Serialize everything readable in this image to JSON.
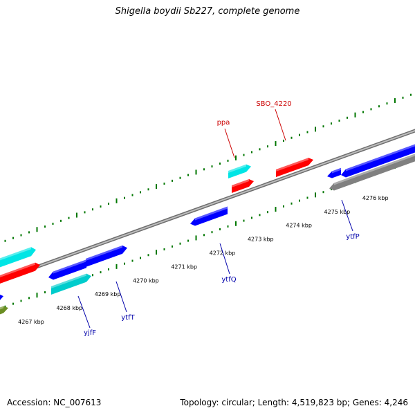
{
  "title": "Shigella boydii Sb227, complete genome",
  "footer": {
    "accession": "Accession: NC_007613",
    "stats": "Topology: circular; Length: 4,519,823 bp; Genes: 4,246"
  },
  "colors": {
    "plus_cds": "#ff0000",
    "minus_cds": "#0000ff",
    "plus_rna": "#00e5e5",
    "minus_rna": "#00cccc",
    "pseudo": "#808080",
    "other": "#6b8e23",
    "tick": "#007700",
    "backbone": "#888888",
    "label_plus": "#cc0000",
    "label_minus": "#0000aa"
  },
  "kbp_ticks": [
    "4267 kbp",
    "4268 kbp",
    "4269 kbp",
    "4270 kbp",
    "4271 kbp",
    "4272 kbp",
    "4273 kbp",
    "4274 kbp",
    "4275 kbp",
    "4276 kbp"
  ],
  "gene_labels": [
    {
      "name": "ppa",
      "strand": "plus"
    },
    {
      "name": "SBO_4220",
      "strand": "plus"
    },
    {
      "name": "yjfF",
      "strand": "minus"
    },
    {
      "name": "ytfT",
      "strand": "minus"
    },
    {
      "name": "ytfQ",
      "strand": "minus"
    },
    {
      "name": "ytfP",
      "strand": "minus"
    }
  ],
  "features": [
    {
      "id": "f-plus-rna-1",
      "kind": "plus_rna"
    },
    {
      "id": "f-plus-cds-1",
      "kind": "plus_cds"
    },
    {
      "id": "f-ppa-rna",
      "kind": "plus_rna"
    },
    {
      "id": "f-ppa-cds",
      "kind": "plus_cds"
    },
    {
      "id": "f-sbo4220",
      "kind": "plus_cds"
    },
    {
      "id": "f-minus-cds-1",
      "kind": "minus_cds"
    },
    {
      "id": "f-minus-cds-2",
      "kind": "minus_cds"
    },
    {
      "id": "f-minus-rna-1",
      "kind": "minus_rna"
    },
    {
      "id": "f-ytfq",
      "kind": "minus_cds"
    },
    {
      "id": "f-ytfp-small",
      "kind": "minus_cds"
    },
    {
      "id": "f-ytfp-long",
      "kind": "minus_cds"
    },
    {
      "id": "f-pseudo-1",
      "kind": "pseudo"
    },
    {
      "id": "f-edge-blue",
      "kind": "minus_cds"
    },
    {
      "id": "f-edge-olive",
      "kind": "other"
    }
  ]
}
